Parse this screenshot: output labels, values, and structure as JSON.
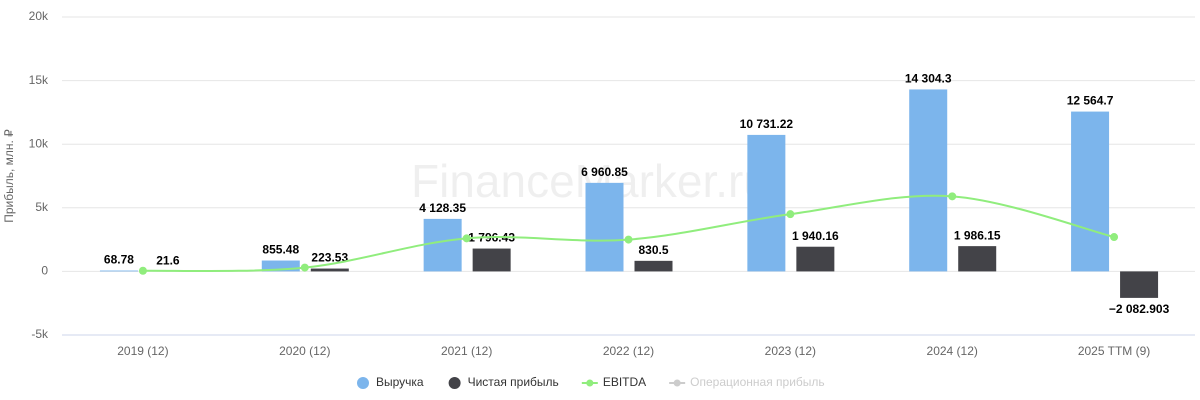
{
  "chart_data": {
    "type": "bar",
    "y_axis_label": "Прибыль, млн. ₽",
    "watermark": "FinanceMarker.ru",
    "categories": [
      "2019 (12)",
      "2020 (12)",
      "2021 (12)",
      "2022 (12)",
      "2023 (12)",
      "2024 (12)",
      "2025 TTM (9)"
    ],
    "series": [
      {
        "name": "Выручка",
        "type": "bar",
        "color": "#7cb5ec",
        "values": [
          68.78,
          855.48,
          4128.35,
          6960.85,
          10731.22,
          14304.3,
          12564.7
        ],
        "value_labels": [
          "68.78",
          "855.48",
          "4 128.35",
          "6 960.85",
          "10 731.22",
          "14 304.3",
          "12 564.7"
        ]
      },
      {
        "name": "Чистая прибыль",
        "type": "bar",
        "color": "#434348",
        "values": [
          21.6,
          223.53,
          1796.43,
          830.5,
          1940.16,
          1986.15,
          -2082.903
        ],
        "value_labels": [
          "21.6",
          "223.53",
          "1 796.43",
          "830.5",
          "1 940.16",
          "1 986.15",
          "−2 082.903"
        ]
      },
      {
        "name": "EBITDA",
        "type": "line",
        "color": "#90ed7d",
        "values": [
          50,
          300,
          2600,
          2500,
          4500,
          5900,
          2700
        ]
      },
      {
        "name": "Операционная прибыль",
        "type": "line",
        "color": "#cccccc",
        "visible": false,
        "values": [
          null,
          null,
          null,
          null,
          null,
          null,
          null
        ]
      }
    ],
    "ylim": [
      -5000,
      20000
    ],
    "yticks": [
      {
        "value": -5000,
        "label": "-5k"
      },
      0,
      {
        "value": 5000,
        "label": "5k"
      },
      {
        "value": 10000,
        "label": "10k"
      },
      {
        "value": 15000,
        "label": "15k"
      },
      {
        "value": 20000,
        "label": "20k"
      }
    ],
    "grid": true
  }
}
